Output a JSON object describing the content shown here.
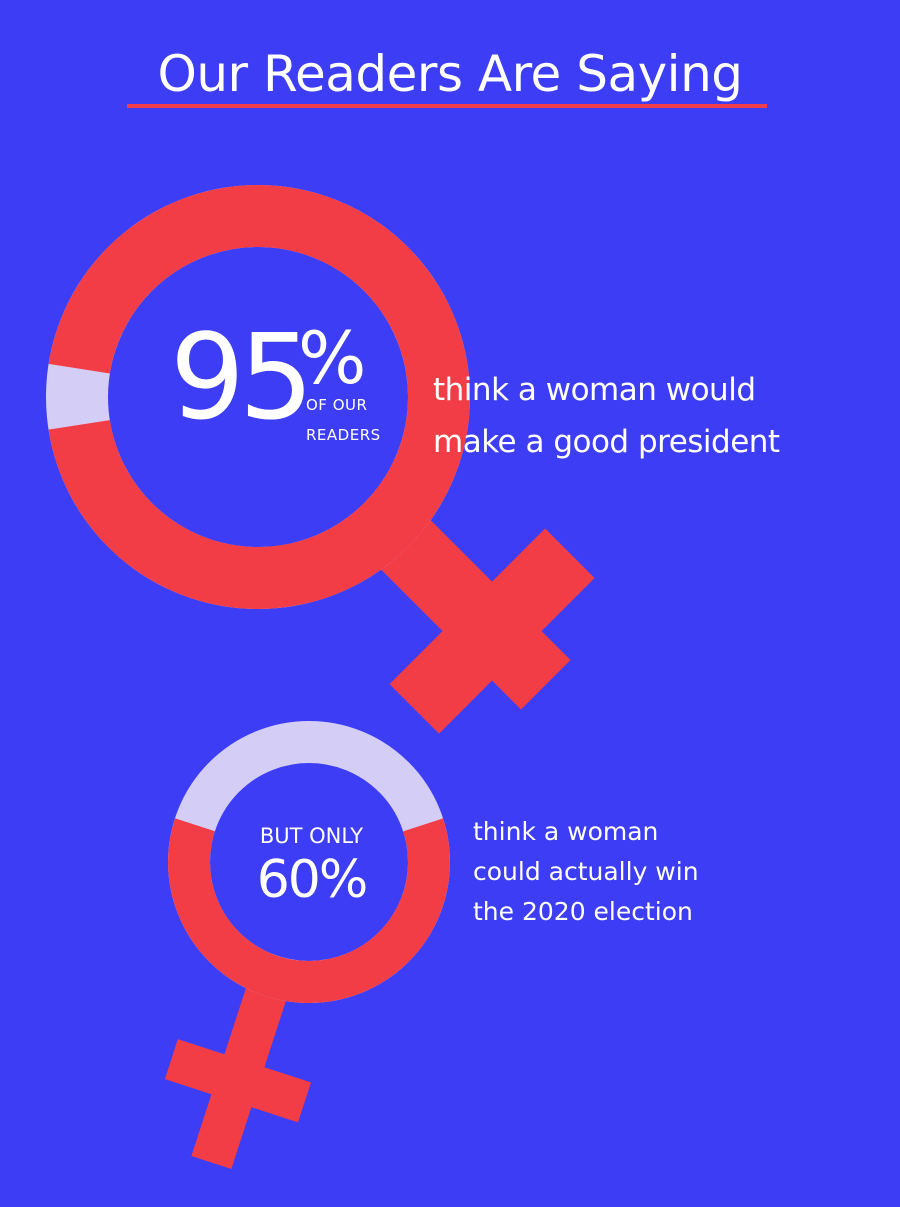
{
  "title": "Our Readers Are Saying",
  "colors": {
    "background": "#3d3df5",
    "accent": "#f23d46",
    "remainder": "#d4cef6",
    "text": "#ffffff"
  },
  "chart_data": [
    {
      "type": "pie",
      "values": [
        95,
        5
      ],
      "value_label": "95",
      "percent_sign": "%",
      "label_line1": "OF OUR",
      "label_line2": "READERS",
      "description_line1": "think a woman would",
      "description_line2": "make a good president"
    },
    {
      "type": "pie",
      "values": [
        60,
        40
      ],
      "prefix": "BUT ONLY",
      "value_label": "60%",
      "description_line1": "think a woman",
      "description_line2": "could actually win",
      "description_line3": "the 2020 election"
    }
  ]
}
